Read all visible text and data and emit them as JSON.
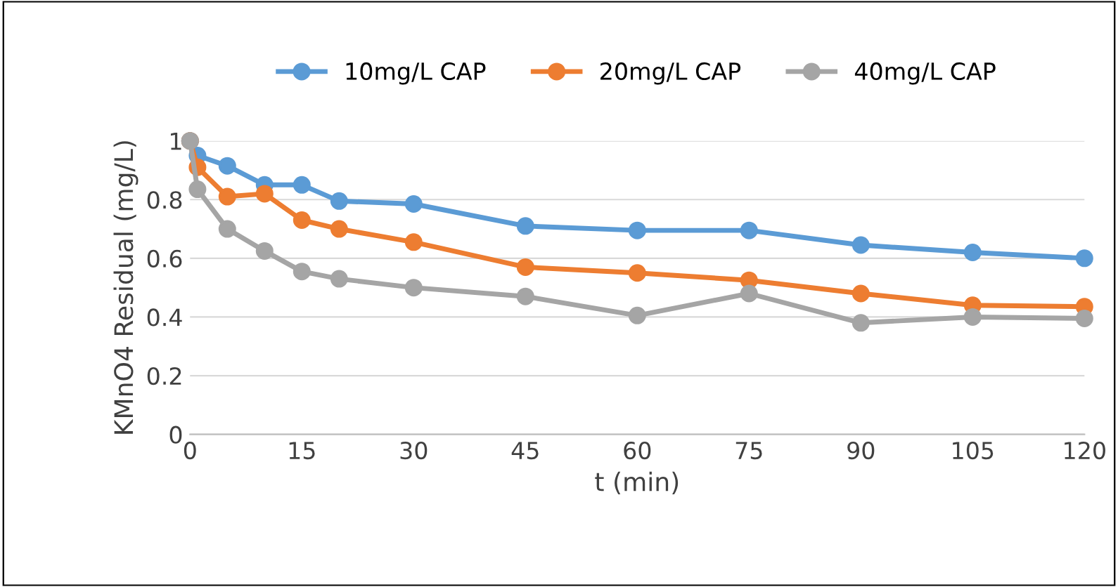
{
  "chart_data": {
    "type": "line",
    "xlabel": "t (min)",
    "ylabel": "KMnO4 Residual (mg/L)",
    "x": [
      0,
      1,
      5,
      10,
      15,
      20,
      30,
      45,
      60,
      75,
      90,
      105,
      120
    ],
    "series": [
      {
        "name": "10mg/L CAP",
        "color": "#5b9bd5",
        "values": [
          1.0,
          0.95,
          0.915,
          0.85,
          0.85,
          0.795,
          0.785,
          0.71,
          0.695,
          0.695,
          0.645,
          0.62,
          0.6
        ]
      },
      {
        "name": "20mg/L CAP",
        "color": "#ed7d31",
        "values": [
          1.0,
          0.91,
          0.81,
          0.82,
          0.73,
          0.7,
          0.655,
          0.57,
          0.55,
          0.525,
          0.48,
          0.44,
          0.435
        ]
      },
      {
        "name": "40mg/L CAP",
        "color": "#a5a5a5",
        "values": [
          1.0,
          0.835,
          0.7,
          0.625,
          0.555,
          0.53,
          0.5,
          0.47,
          0.405,
          0.48,
          0.38,
          0.4,
          0.395
        ]
      }
    ],
    "xlim": [
      0,
      120
    ],
    "xticks": [
      0,
      15,
      30,
      45,
      60,
      75,
      90,
      105,
      120
    ],
    "ylim": [
      0,
      1
    ],
    "yticks": [
      0,
      0.2,
      0.4,
      0.6,
      0.8,
      1
    ],
    "grid": "y",
    "legend": "top",
    "marker": "circle",
    "line_style": "solid"
  }
}
